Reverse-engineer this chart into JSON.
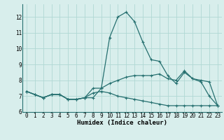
{
  "title": "",
  "xlabel": "Humidex (Indice chaleur)",
  "background_color": "#d8eeec",
  "grid_color": "#b0d8d4",
  "line_color": "#267070",
  "xlim": [
    -0.5,
    23.5
  ],
  "ylim": [
    6.0,
    12.8
  ],
  "yticks": [
    6,
    7,
    8,
    9,
    10,
    11,
    12
  ],
  "x": [
    0,
    1,
    2,
    3,
    4,
    5,
    6,
    7,
    8,
    9,
    10,
    11,
    12,
    13,
    14,
    15,
    16,
    17,
    18,
    19,
    20,
    21,
    22,
    23
  ],
  "line1": [
    7.3,
    7.1,
    6.9,
    7.1,
    7.1,
    6.8,
    6.8,
    6.9,
    6.9,
    7.5,
    10.7,
    12.0,
    12.3,
    11.7,
    10.4,
    9.3,
    9.2,
    8.3,
    7.8,
    8.5,
    8.1,
    7.9,
    7.0,
    6.4
  ],
  "line2": [
    7.3,
    7.1,
    6.9,
    7.1,
    7.1,
    6.8,
    6.8,
    6.9,
    7.5,
    7.5,
    7.8,
    8.0,
    8.2,
    8.3,
    8.3,
    8.3,
    8.4,
    8.1,
    8.0,
    8.6,
    8.1,
    8.0,
    7.9,
    6.4
  ],
  "line3": [
    7.3,
    7.1,
    6.9,
    7.1,
    7.1,
    6.8,
    6.8,
    6.9,
    7.2,
    7.3,
    7.2,
    7.0,
    6.9,
    6.8,
    6.7,
    6.6,
    6.5,
    6.4,
    6.4,
    6.4,
    6.4,
    6.4,
    6.4,
    6.4
  ],
  "lw": 0.9,
  "ms": 2.5,
  "xlabel_fontsize": 6.5,
  "tick_fontsize": 5.5
}
